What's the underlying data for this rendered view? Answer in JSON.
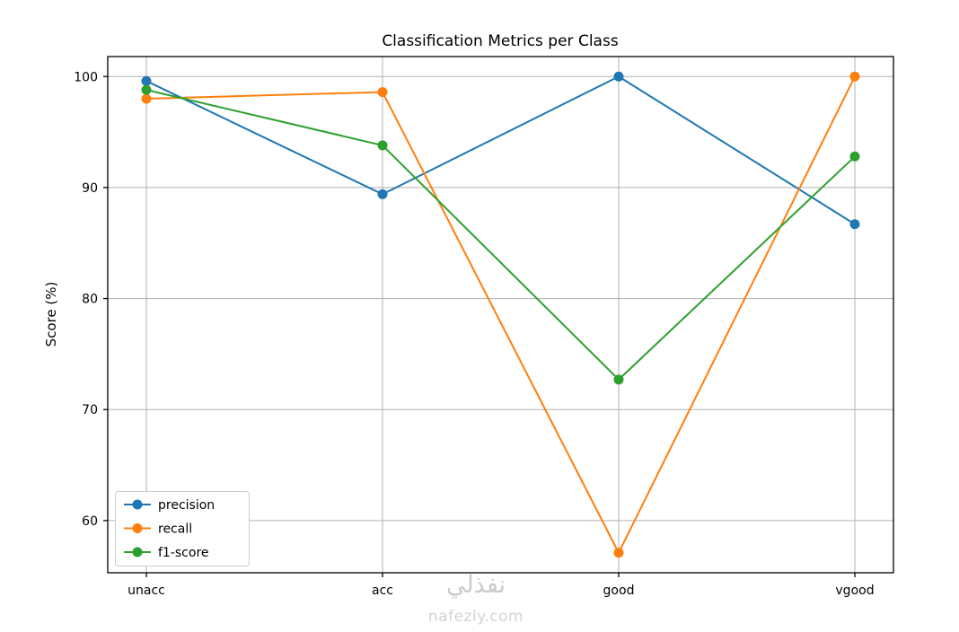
{
  "watermark": {
    "line1": "نفذلي",
    "line2": "nafezly.com"
  },
  "chart_data": {
    "type": "line",
    "title": "Classification Metrics per Class",
    "xlabel": "",
    "ylabel": "Score (%)",
    "categories": [
      "unacc",
      "acc",
      "good",
      "vgood"
    ],
    "series": [
      {
        "name": "precision",
        "color": "#1f77b4",
        "values": [
          99.6,
          89.4,
          100.0,
          86.7
        ]
      },
      {
        "name": "recall",
        "color": "#ff7f0e",
        "values": [
          98.0,
          98.6,
          57.1,
          100.0
        ]
      },
      {
        "name": "f1-score",
        "color": "#2ca02c",
        "values": [
          98.8,
          93.8,
          72.7,
          92.8
        ]
      }
    ],
    "yticks": [
      60,
      70,
      80,
      90,
      100
    ],
    "ylim": [
      55.3,
      101.8
    ],
    "grid": true,
    "legend_position": "lower left",
    "marker": "circle",
    "line_width": 2
  }
}
